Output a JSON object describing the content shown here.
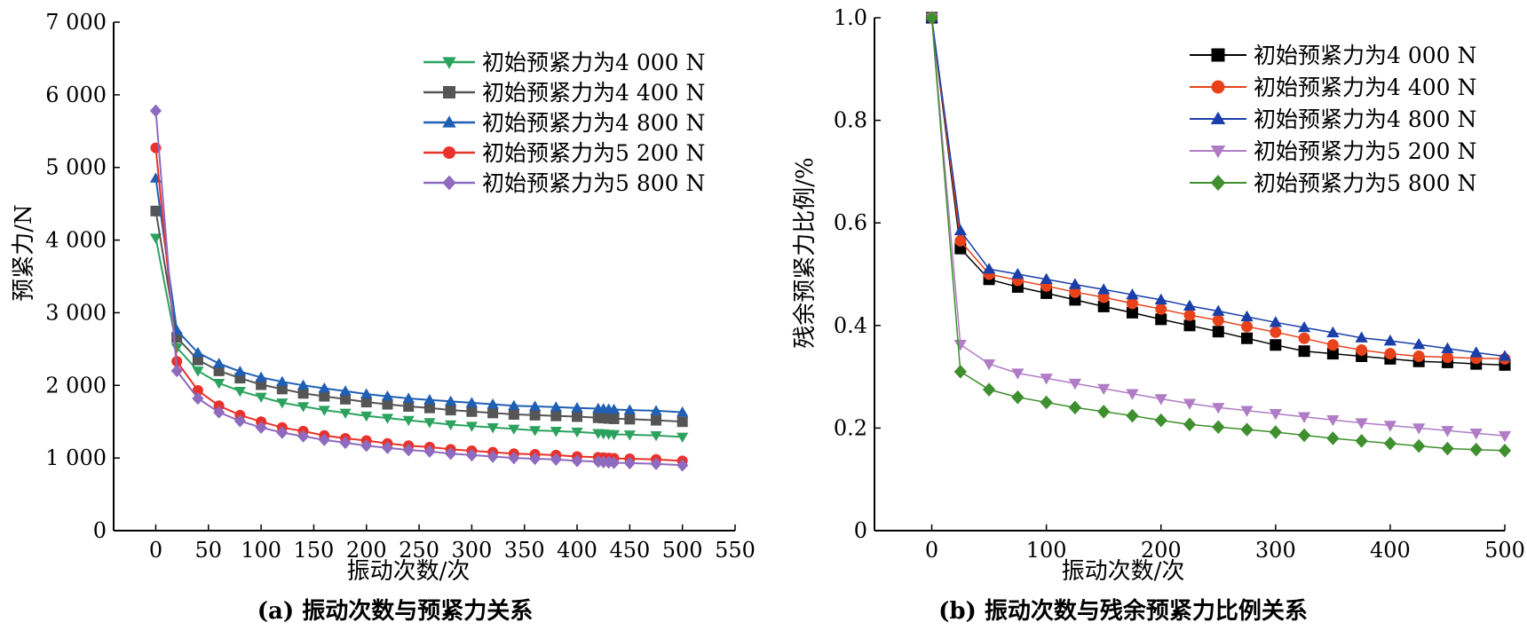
{
  "chart_data": [
    {
      "id": "a",
      "type": "line",
      "caption": "(a) 振动次数与预紧力关系",
      "xlabel": "振动次数/次",
      "ylabel": "预紧力/N",
      "xlim": [
        -40,
        550
      ],
      "ylim": [
        0,
        7000
      ],
      "x_ticks": [
        0,
        50,
        100,
        150,
        200,
        250,
        300,
        350,
        400,
        450,
        500,
        550
      ],
      "x_tick_labels": [
        "0",
        "50",
        "100",
        "150",
        "200",
        "250",
        "300",
        "350",
        "400",
        "450",
        "500",
        "550"
      ],
      "y_ticks": [
        0,
        1000,
        2000,
        3000,
        4000,
        5000,
        6000,
        7000
      ],
      "y_tick_labels": [
        "0",
        "1 000",
        "2 000",
        "3 000",
        "4 000",
        "5 000",
        "6 000",
        "7 000"
      ],
      "legend_position": "top-right",
      "x": [
        0,
        20,
        40,
        60,
        80,
        100,
        120,
        140,
        160,
        180,
        200,
        220,
        240,
        260,
        280,
        300,
        320,
        340,
        360,
        380,
        400,
        420,
        425,
        430,
        435,
        450,
        475,
        500
      ],
      "series": [
        {
          "name": "初始预紧力为4 000 N",
          "color": "#2ca25f",
          "marker": "triangle-down",
          "values": [
            4030,
            2520,
            2200,
            2030,
            1920,
            1840,
            1760,
            1710,
            1660,
            1620,
            1580,
            1550,
            1520,
            1490,
            1460,
            1440,
            1420,
            1400,
            1380,
            1370,
            1360,
            1340,
            1335,
            1330,
            1325,
            1320,
            1310,
            1290
          ]
        },
        {
          "name": "初始预紧力为4 400 N",
          "color": "#555555",
          "marker": "square",
          "values": [
            4400,
            2660,
            2350,
            2200,
            2100,
            2010,
            1950,
            1890,
            1850,
            1810,
            1770,
            1740,
            1710,
            1690,
            1660,
            1640,
            1620,
            1600,
            1590,
            1580,
            1570,
            1555,
            1550,
            1545,
            1540,
            1535,
            1520,
            1500
          ]
        },
        {
          "name": "初始预紧力为4 800 N",
          "color": "#1f5fb4",
          "marker": "triangle-up",
          "values": [
            4850,
            2760,
            2450,
            2300,
            2190,
            2110,
            2050,
            2000,
            1960,
            1920,
            1880,
            1850,
            1820,
            1800,
            1780,
            1760,
            1740,
            1720,
            1710,
            1700,
            1690,
            1680,
            1675,
            1672,
            1668,
            1660,
            1650,
            1630
          ]
        },
        {
          "name": "初始预紧力为5 200 N",
          "color": "#e8322b",
          "marker": "circle",
          "values": [
            5270,
            2330,
            1930,
            1720,
            1590,
            1500,
            1420,
            1370,
            1310,
            1270,
            1240,
            1200,
            1170,
            1150,
            1120,
            1100,
            1080,
            1060,
            1050,
            1040,
            1020,
            1010,
            1005,
            1000,
            995,
            990,
            980,
            960
          ]
        },
        {
          "name": "初始预紧力为5 800 N",
          "color": "#8e6bbf",
          "marker": "diamond",
          "values": [
            5780,
            2200,
            1820,
            1630,
            1510,
            1420,
            1350,
            1300,
            1250,
            1210,
            1170,
            1140,
            1110,
            1090,
            1060,
            1040,
            1020,
            1000,
            990,
            980,
            960,
            950,
            945,
            940,
            935,
            930,
            920,
            900
          ]
        }
      ]
    },
    {
      "id": "b",
      "type": "line",
      "caption": "(b) 振动次数与残余预紧力比例关系",
      "xlabel": "振动次数/次",
      "ylabel": "残余预紧力比例/%",
      "xlim": [
        -50,
        500
      ],
      "ylim": [
        0,
        1.0
      ],
      "x_ticks": [
        0,
        100,
        200,
        300,
        400,
        500
      ],
      "x_tick_labels": [
        "0",
        "100",
        "200",
        "300",
        "400",
        "500"
      ],
      "y_ticks": [
        0,
        0.2,
        0.4,
        0.6,
        0.8,
        1.0
      ],
      "y_tick_labels": [
        "0",
        "0.2",
        "0.4",
        "0.6",
        "0.8",
        "1.0"
      ],
      "legend_position": "top-right",
      "x": [
        0,
        25,
        50,
        75,
        100,
        125,
        150,
        175,
        200,
        225,
        250,
        275,
        300,
        325,
        350,
        375,
        400,
        425,
        450,
        475,
        500
      ],
      "series": [
        {
          "name": "初始预紧力为4 000 N",
          "color": "#000000",
          "marker": "square",
          "values": [
            1.0,
            0.55,
            0.49,
            0.475,
            0.463,
            0.45,
            0.437,
            0.425,
            0.412,
            0.4,
            0.388,
            0.375,
            0.362,
            0.35,
            0.345,
            0.34,
            0.335,
            0.33,
            0.328,
            0.325,
            0.323
          ]
        },
        {
          "name": "初始预紧力为4 400 N",
          "color": "#e8421b",
          "marker": "circle",
          "values": [
            1.0,
            0.565,
            0.5,
            0.488,
            0.477,
            0.465,
            0.455,
            0.443,
            0.432,
            0.42,
            0.41,
            0.398,
            0.387,
            0.375,
            0.362,
            0.352,
            0.345,
            0.34,
            0.338,
            0.336,
            0.335
          ]
        },
        {
          "name": "初始预紧力为4 800 N",
          "color": "#1a3fa8",
          "marker": "triangle-up",
          "values": [
            1.0,
            0.585,
            0.51,
            0.5,
            0.49,
            0.48,
            0.47,
            0.46,
            0.45,
            0.438,
            0.428,
            0.417,
            0.406,
            0.396,
            0.386,
            0.376,
            0.37,
            0.363,
            0.355,
            0.347,
            0.34
          ]
        },
        {
          "name": "初始预紧力为5 200 N",
          "color": "#b07cc6",
          "marker": "triangle-down",
          "values": [
            1.0,
            0.363,
            0.325,
            0.307,
            0.297,
            0.287,
            0.277,
            0.267,
            0.257,
            0.248,
            0.24,
            0.234,
            0.228,
            0.222,
            0.216,
            0.21,
            0.205,
            0.2,
            0.195,
            0.19,
            0.185
          ]
        },
        {
          "name": "初始预紧力为5 800 N",
          "color": "#3f8f2f",
          "marker": "diamond",
          "values": [
            1.0,
            0.31,
            0.275,
            0.26,
            0.25,
            0.24,
            0.232,
            0.224,
            0.215,
            0.207,
            0.202,
            0.197,
            0.192,
            0.186,
            0.18,
            0.175,
            0.17,
            0.165,
            0.16,
            0.158,
            0.156
          ]
        }
      ]
    }
  ]
}
